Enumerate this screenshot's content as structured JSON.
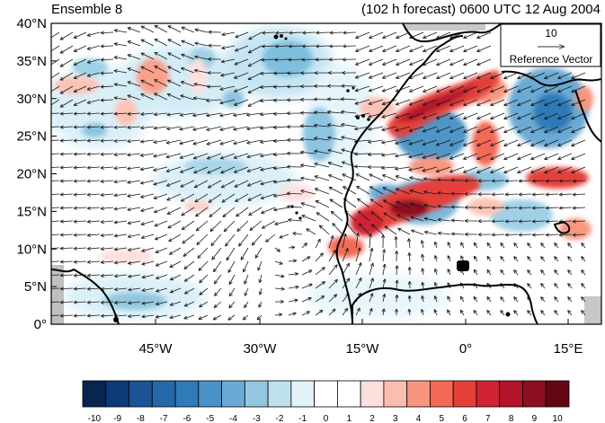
{
  "header": {
    "left_title": "Ensemble 8",
    "right_title": "(102 h forecast) 0600 UTC 12 Aug 2004"
  },
  "map": {
    "lat_labels": [
      "40°N",
      "35°N",
      "30°N",
      "25°N",
      "20°N",
      "15°N",
      "10°N",
      "5°N",
      "0°"
    ],
    "lon_labels": [
      "45°W",
      "30°W",
      "15°W",
      "0°",
      "15°E"
    ],
    "coastline_color": "#000000",
    "field": "filled anomaly contours with wind vectors"
  },
  "reference_vector": {
    "magnitude": "10",
    "label": "Reference Vector"
  },
  "colorbar": {
    "labels": [
      "-10",
      "-9",
      "-8",
      "-7",
      "-6",
      "-5",
      "-4",
      "-3",
      "-2",
      "-1",
      "0",
      "1",
      "2",
      "3",
      "4",
      "5",
      "6",
      "7",
      "8",
      "9",
      "10"
    ],
    "colors": [
      "#08254f",
      "#0c3a78",
      "#1a5496",
      "#2468a8",
      "#2f7ab8",
      "#4a93c8",
      "#6aaad4",
      "#93c7e0",
      "#bde2ee",
      "#e2f3fa",
      "#ffffff",
      "#ffffff",
      "#fde0de",
      "#fbbdb0",
      "#f8957e",
      "#f26a55",
      "#e4403a",
      "#cf2232",
      "#b31429",
      "#8e0f20",
      "#640514"
    ]
  }
}
